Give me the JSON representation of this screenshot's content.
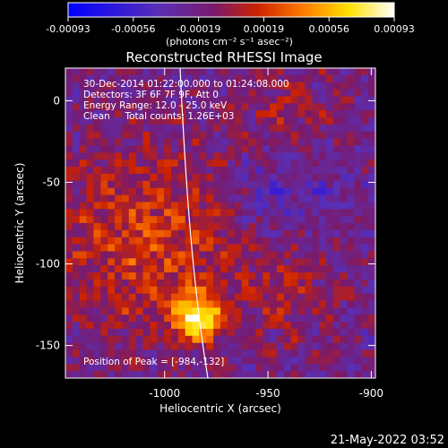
{
  "chart_data": {
    "type": "heatmap",
    "title": "Reconstructed RHESSI Image",
    "xlabel": "Heliocentric X (arcsec)",
    "ylabel": "Heliocentric Y (arcsec)",
    "xlim": [
      -1048,
      -898
    ],
    "ylim": [
      -170,
      20
    ],
    "x_ticks": [
      "-1000",
      "-950",
      "-900"
    ],
    "y_ticks": [
      "0",
      "-50",
      "-100",
      "-150"
    ],
    "colorbar": {
      "range": [
        -0.00093,
        0.00093
      ],
      "ticks": [
        "-0.00093",
        "-0.00056",
        "-0.00019",
        "0.00019",
        "0.00056",
        "0.00093"
      ],
      "colormap": [
        "#0000ff",
        "#5a2fb5",
        "#7a1a6a",
        "#cc2200",
        "#ff7a00",
        "#ffe000",
        "#ffffff"
      ]
    },
    "peak": {
      "x": -984,
      "y": -132
    },
    "annotations": [
      "30-Dec-2014 01:22:00.000 to 01:24:08.000",
      "Detectors: 3F 6F 7F 9F, Att 0",
      "Energy Range: 12.0 - 25.0 keV",
      "Clean     Total counts: 1.26E+03",
      "Position of Peak = [-984,-132]"
    ]
  },
  "colorbar_label": "(photons cm⁻² s⁻¹ asec⁻²)",
  "footer_date": "21-May-2022 03:52"
}
